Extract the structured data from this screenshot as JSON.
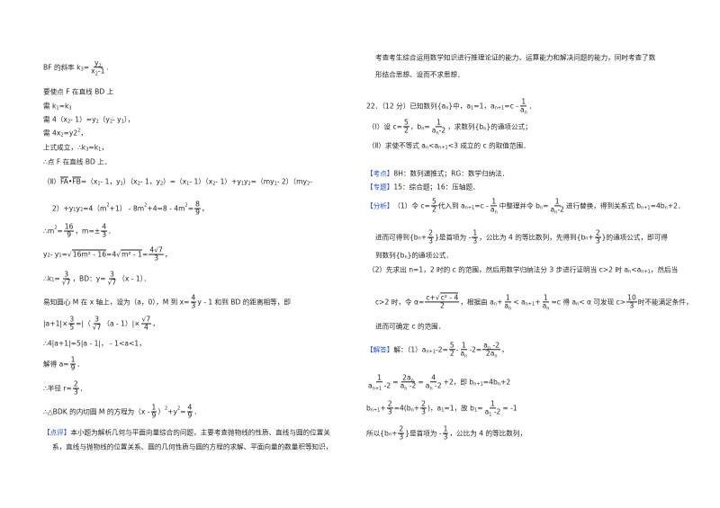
{
  "left": [
    [
      "BF 的斜率 k",
      {
        "sub": "3"
      },
      "=",
      {
        "f": [
          [
            "y",
            {
              "sub": "2"
            }
          ],
          [
            "x",
            {
              "sub": "2"
            },
            "-1"
          ]
        ]
      },
      "."
    ],
    [
      "要使点 F 在直线 BD 上"
    ],
    [
      "需 k",
      {
        "sub": "1"
      },
      "=k",
      {
        "sub": "3"
      }
    ],
    [
      "需 4（x",
      {
        "sub": "2"
      },
      " - 1）=y",
      {
        "sub": "2"
      },
      "（y",
      {
        "sub": "2"
      },
      " - y",
      {
        "sub": "1"
      },
      "），"
    ],
    [
      "需 4x",
      {
        "sub": "2"
      },
      "=y2",
      {
        "sup": "2"
      },
      "，"
    ],
    [
      "上式成立，∴k",
      {
        "sub": "3"
      },
      "=k",
      {
        "sub": "1"
      },
      "，"
    ],
    [
      "∴点 F 在直线 BD 上．"
    ],
    [
      "（Ⅱ）",
      {
        "ov": "FA"
      },
      "•",
      {
        "ov": "FB"
      },
      "=（x",
      {
        "sub": "1"
      },
      " - 1，y",
      {
        "sub": "1"
      },
      "）（x",
      {
        "sub": "2"
      },
      " - 1，y",
      {
        "sub": "2"
      },
      "）=（x",
      {
        "sub": "1"
      },
      " - 1）（x",
      {
        "sub": "2"
      },
      " - 1）+y",
      {
        "sub": "1"
      },
      "y",
      {
        "sub": "2"
      },
      "=（my",
      {
        "sub": "1"
      },
      " - 2）（my",
      {
        "sub": "2"
      },
      " -"
    ],
    [
      "2）+y",
      {
        "sub": "1"
      },
      "y",
      {
        "sub": "2"
      },
      "=4（m",
      {
        "sup": "2"
      },
      "+1） - 8m",
      {
        "sup": "2"
      },
      "+4=8 - 4m",
      {
        "sup": "2"
      },
      "=",
      {
        "f": [
          [
            "8"
          ],
          [
            "9"
          ]
        ]
      },
      "，"
    ],
    [
      "∴m",
      {
        "sup": "2"
      },
      "=",
      {
        "f": [
          [
            "16"
          ],
          [
            "9"
          ]
        ]
      },
      "，m=±",
      {
        "f": [
          [
            "4"
          ],
          [
            "3"
          ]
        ]
      },
      "．"
    ],
    [
      "y",
      {
        "sub": "2"
      },
      " - y",
      {
        "sub": "1"
      },
      "=",
      {
        "sqrt": "16m² - 16"
      },
      "=4",
      {
        "sqrt": "m² - 1"
      },
      "=",
      {
        "f": [
          [
            "4√7"
          ],
          [
            "3"
          ]
        ]
      },
      "，"
    ],
    [
      "∴k",
      {
        "sub": "1"
      },
      "=",
      {
        "f": [
          [
            "3"
          ],
          [
            "√7"
          ]
        ]
      },
      "，BD：y=",
      {
        "f": [
          [
            "3"
          ],
          [
            "√7"
          ]
        ]
      },
      "（x - 1）．"
    ],
    [
      "易知圆心 M 在 x 轴上，设为（a，0），M 到 x=",
      {
        "f": [
          [
            "4"
          ],
          [
            "3"
          ]
        ]
      },
      "y - 1 和到 BD 的距离相等，即"
    ],
    [
      "|a+1|×",
      {
        "f": [
          [
            "3"
          ],
          [
            "5"
          ]
        ]
      },
      "=|（",
      {
        "f": [
          [
            "3"
          ],
          [
            "√7"
          ]
        ]
      },
      "（a - 1）|×",
      {
        "f": [
          [
            "√7"
          ],
          [
            "4"
          ]
        ]
      },
      "，"
    ],
    [
      "∴4|a+1|=5|a - 1|， - 1<a<1，"
    ],
    [
      "解得 a=",
      {
        "f": [
          [
            "1"
          ],
          [
            "9"
          ]
        ]
      },
      "．"
    ],
    [
      "∴半径 r=",
      {
        "f": [
          [
            "2"
          ],
          [
            "3"
          ]
        ]
      },
      "．"
    ],
    [
      "∴△BDK 的内切圆 M 的方程为（x - ",
      {
        "f": [
          [
            "1"
          ],
          [
            "9"
          ]
        ]
      },
      "）",
      {
        "sup": "2"
      },
      "+y",
      {
        "sup": "2"
      },
      "=",
      {
        "f": [
          [
            "4"
          ],
          [
            "9"
          ]
        ]
      },
      "．"
    ],
    [
      {
        "tag": "【点评】"
      },
      "本小题为解析几何与平面向量综合的问题，主要考查抛物线的性质、直线与圆的位置关"
    ],
    [
      "系，直线与抛物线的位置关系、圆的几何性质与圆的方程的求解、平面向量的数量积等知识，"
    ]
  ],
  "right": [
    [
      "考查考生综合运用数学知识进行推理论证的能力、运算能力和解决问题的能力，同时考查了数"
    ],
    [
      "形结合思想、设而不求思想．"
    ],
    [
      "22．（12 分）已知数列{a",
      {
        "sub": "n"
      },
      "}中，a",
      {
        "sub": "1"
      },
      "=1，a",
      {
        "sub": "n+1"
      },
      "=c - ",
      {
        "f": [
          [
            "1"
          ],
          [
            "a",
            {
              "sub": "n"
            }
          ]
        ]
      },
      "．"
    ],
    [
      "（Ⅰ）设 c=",
      {
        "f": [
          [
            "5"
          ],
          [
            "2"
          ]
        ]
      },
      "，b",
      {
        "sub": "n"
      },
      "=",
      {
        "f": [
          [
            "1"
          ],
          [
            "a",
            {
              "sub": "n"
            },
            "-2"
          ]
        ]
      },
      "，求数列{b",
      {
        "sub": "n"
      },
      "}的通项公式；"
    ],
    [
      "（Ⅱ）求使不等式 a",
      {
        "sub": "n"
      },
      "<a",
      {
        "sub": "n+1"
      },
      "<3 成立的 c 的取值范围．"
    ],
    [
      {
        "tag": "【考点】"
      },
      "8H：数列递推式；RG：数学归纳法．"
    ],
    [
      {
        "tag": "【专题】"
      },
      "15：综合题；16：压轴题．"
    ],
    [
      {
        "tag": "【分析】"
      },
      "（1）令 c=",
      {
        "f": [
          [
            "5"
          ],
          [
            "2"
          ]
        ]
      },
      "代入到 a",
      {
        "sub": "n+1"
      },
      "=c - ",
      {
        "f": [
          [
            "1"
          ],
          [
            "a",
            {
              "sub": "n"
            }
          ]
        ]
      },
      "中整理并令 b",
      {
        "sub": "n"
      },
      "=",
      {
        "f": [
          [
            "1"
          ],
          [
            "a",
            {
              "sub": "n"
            },
            "-2"
          ]
        ]
      },
      "进行替换，得到关系式 b",
      {
        "sub": "n+1"
      },
      "=4b",
      {
        "sub": "n"
      },
      "+2．"
    ],
    [
      "进而可得到{b",
      {
        "sub": "n"
      },
      "+",
      {
        "f": [
          [
            "2"
          ],
          [
            "3"
          ]
        ]
      },
      "}是首项为 - ",
      {
        "f": [
          [
            "1"
          ],
          [
            "3"
          ]
        ]
      },
      "，公比为 4 的等比数列，先得到{b",
      {
        "sub": "n"
      },
      "+",
      {
        "f": [
          [
            "2"
          ],
          [
            "3"
          ]
        ]
      },
      "}的通项公式，即可得"
    ],
    [
      "到数列{b",
      {
        "sub": "n"
      },
      "}的通项公式．"
    ],
    [
      "（2）先求出 n=1，2 时的 c 的范围，然后用数学归纳法分 3 步进行证明当 c>2 时 a",
      {
        "sub": "n"
      },
      "<a",
      {
        "sub": "n+1"
      },
      "，然后当"
    ],
    [
      "c>2 时，令 α=",
      {
        "f": [
          [
            "c+",
            {
              "sqrt": "c² - 4"
            }
          ],
          [
            "2"
          ]
        ]
      },
      "，根据由 a",
      {
        "sub": "n"
      },
      "+",
      {
        "f": [
          [
            "1"
          ],
          [
            "a",
            {
              "sub": "n"
            }
          ]
        ]
      },
      "< a",
      {
        "sub": "n+1"
      },
      "+",
      {
        "f": [
          [
            "1"
          ],
          [
            "a",
            {
              "sub": "n"
            }
          ]
        ]
      },
      "=c 得 a",
      {
        "sub": "n"
      },
      "< α 可发现 c>",
      {
        "f": [
          [
            "10"
          ],
          [
            "3"
          ]
        ]
      },
      "时不能满足条件，"
    ],
    [
      "进而可确定 c 的范围．"
    ],
    [
      {
        "tag": "【解答】"
      },
      "解：（1）a",
      {
        "sub": "n+1"
      },
      " -2=",
      {
        "f": [
          [
            "5"
          ],
          [
            "2"
          ]
        ]
      },
      " - ",
      {
        "f": [
          [
            "1"
          ],
          [
            "a",
            {
              "sub": "n"
            }
          ]
        ]
      },
      " -2=",
      {
        "f": [
          [
            "a",
            {
              "sub": "n"
            },
            " -2"
          ],
          [
            "2a",
            {
              "sub": "n"
            }
          ]
        ]
      },
      "，"
    ],
    [
      {
        "f": [
          [
            "1"
          ],
          [
            "a",
            {
              "sub": "n+1"
            },
            " -2"
          ]
        ]
      },
      "=",
      {
        "f": [
          [
            "2a",
            {
              "sub": "n"
            }
          ],
          [
            "a",
            {
              "sub": "n"
            },
            " -2"
          ]
        ]
      },
      "=",
      {
        "f": [
          [
            "4"
          ],
          [
            "a",
            {
              "sub": "n"
            },
            " -2"
          ]
        ]
      },
      "+2，即 b",
      {
        "sub": "n+1"
      },
      "=4b",
      {
        "sub": "n"
      },
      "+2"
    ],
    [
      "b",
      {
        "sub": "n+1"
      },
      "+",
      {
        "f": [
          [
            "2"
          ],
          [
            "3"
          ]
        ]
      },
      "=4(b",
      {
        "sub": "n"
      },
      "+",
      {
        "f": [
          [
            "2"
          ],
          [
            "3"
          ]
        ]
      },
      ")，a",
      {
        "sub": "1"
      },
      "=1，故 b",
      {
        "sub": "1"
      },
      "=",
      {
        "f": [
          [
            "1"
          ],
          [
            "a",
            {
              "sub": "1"
            },
            " -2"
          ]
        ]
      },
      "= -1"
    ],
    [
      "所以{b",
      {
        "sub": "n"
      },
      "+",
      {
        "f": [
          [
            "2"
          ],
          [
            "3"
          ]
        ]
      },
      "}是首项为 - ",
      {
        "f": [
          [
            "1"
          ],
          [
            "3"
          ]
        ]
      },
      "，公比为 4 的等比数列，"
    ]
  ],
  "colors": {
    "label_blue": "#1f4fd1",
    "text": "#222222"
  }
}
